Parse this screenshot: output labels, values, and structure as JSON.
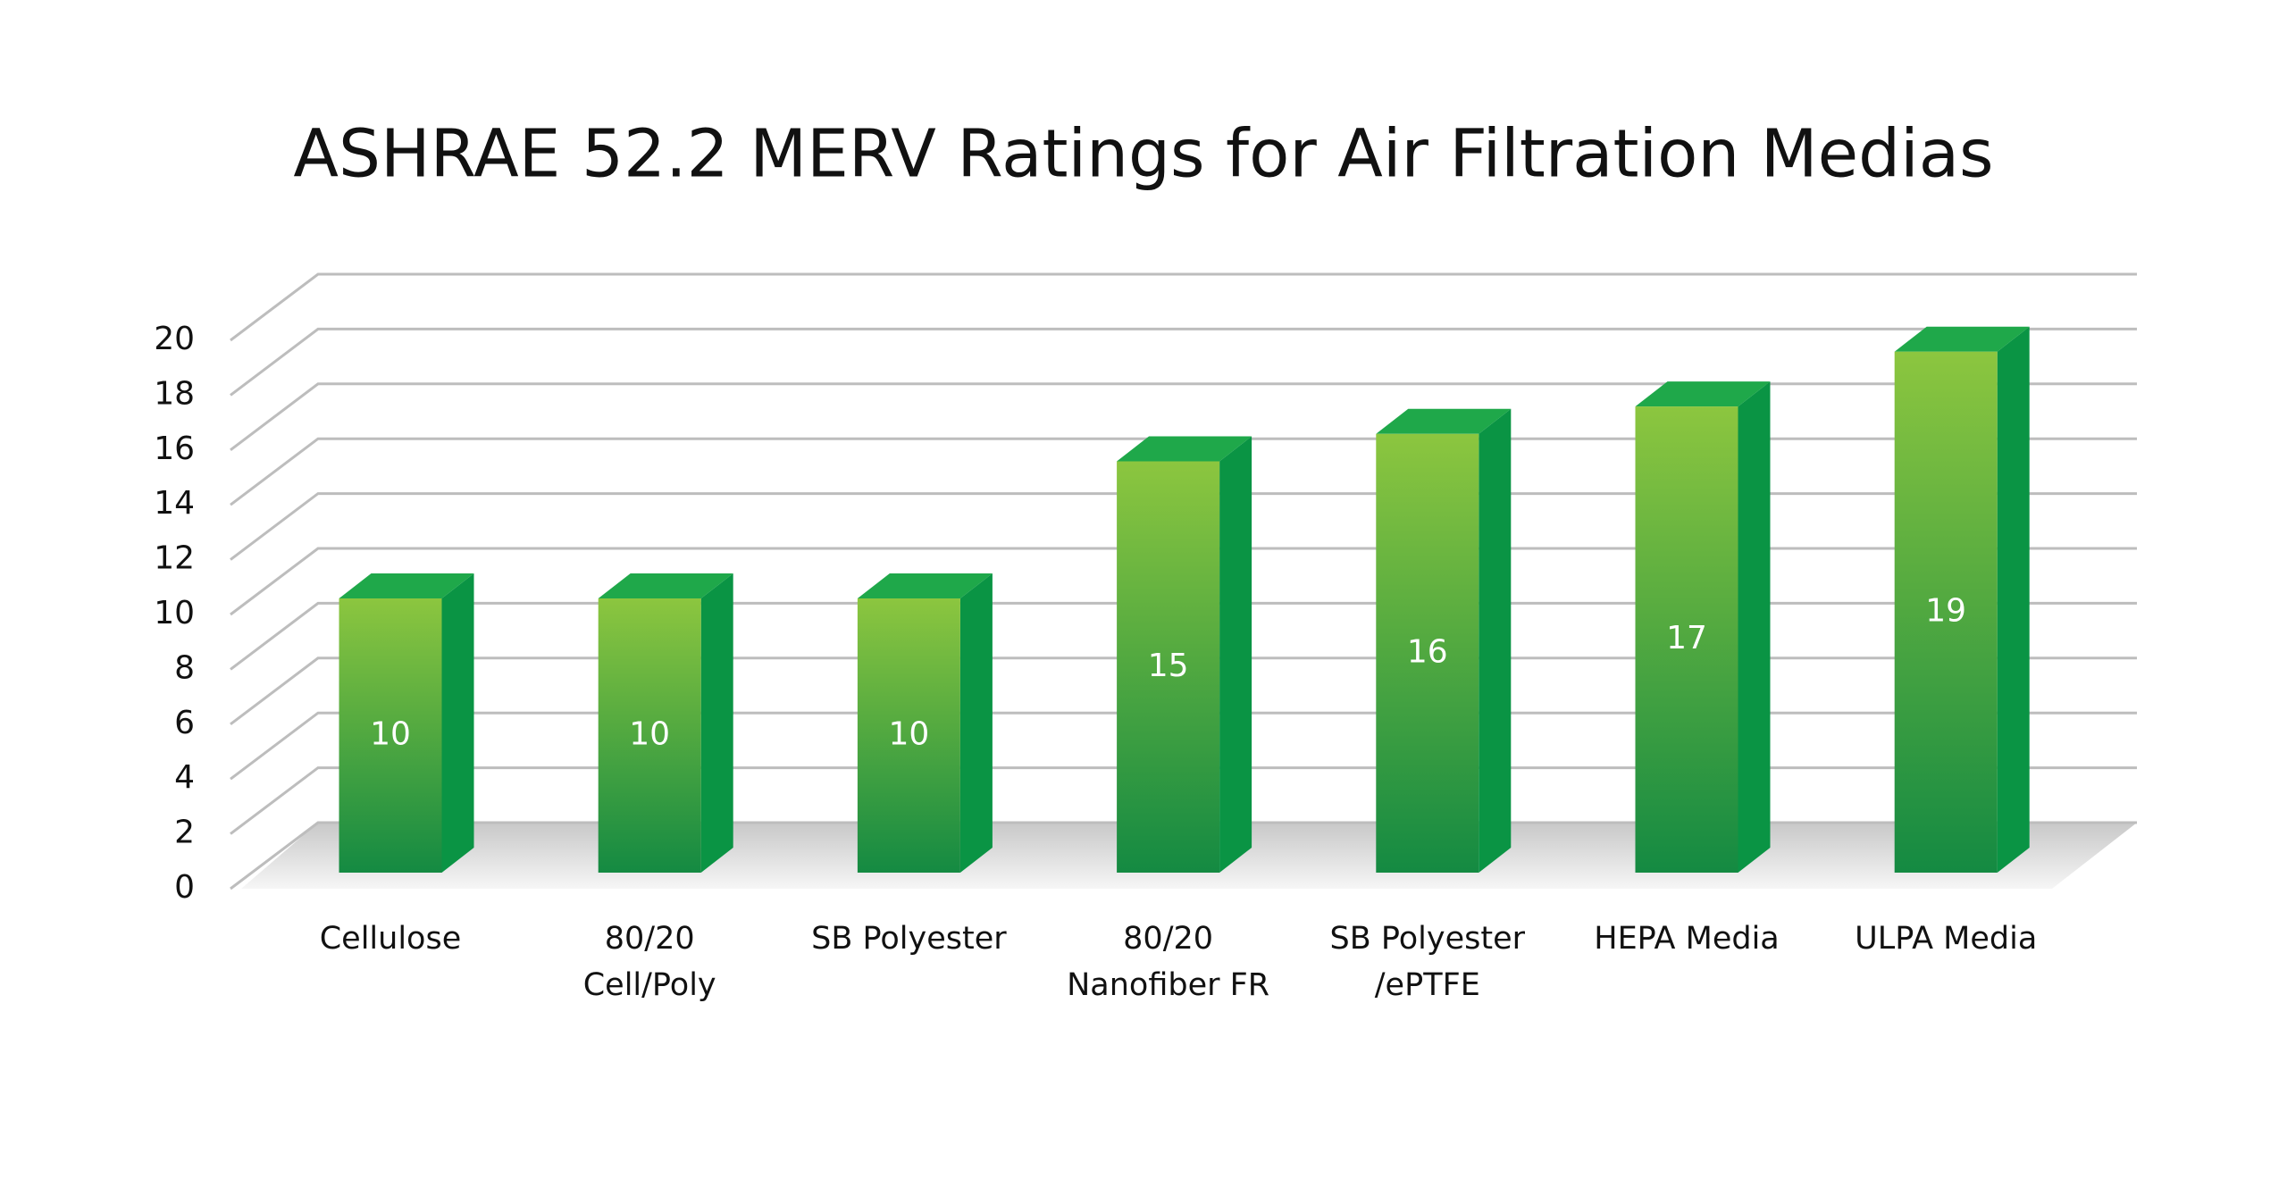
{
  "chart_data": {
    "type": "bar3d",
    "title": "ASHRAE 52.2 MERV Ratings for Air Filtration Medias",
    "categories": [
      "Cellulose",
      "80/20\nCell/Poly",
      "SB Polyester",
      "80/20\nNanofiber FR",
      "SB Polyester\n/ePTFE",
      "HEPA Media",
      "ULPA Media"
    ],
    "values": [
      10,
      10,
      10,
      15,
      16,
      17,
      19
    ],
    "color": "#2a9d48",
    "ylim": [
      0,
      20
    ],
    "yticks": [
      0,
      2,
      4,
      6,
      8,
      10,
      12,
      14,
      16,
      18,
      20
    ],
    "grid": true
  }
}
